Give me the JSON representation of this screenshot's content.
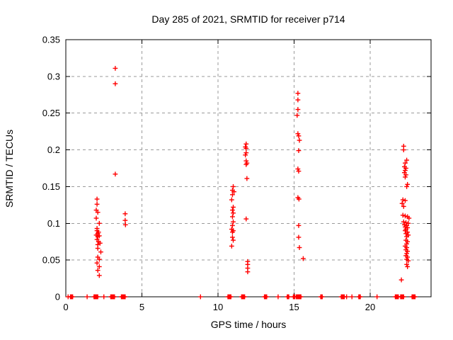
{
  "chart_data": {
    "type": "scatter",
    "title": "Day 285 of 2021, SRMTID for receiver p714",
    "xlabel": "GPS time / hours",
    "ylabel": "SRMTID / TECUs",
    "xlim": [
      0,
      24
    ],
    "ylim": [
      0,
      0.35
    ],
    "xticks": [
      0,
      5,
      10,
      15,
      20
    ],
    "xtick_labels": [
      "0",
      "5",
      "10",
      "15",
      "20"
    ],
    "yticks": [
      0,
      0.05,
      0.1,
      0.15,
      0.2,
      0.25,
      0.3,
      0.35
    ],
    "ytick_labels": [
      "0",
      "0.05",
      "0.1",
      "0.15",
      "0.2",
      "0.25",
      "0.3",
      "0.35"
    ],
    "grid": true,
    "grid_color": "#9a9a9a",
    "axis_color": "#000000",
    "marker": "plus",
    "marker_color": "#ff0000",
    "legend": "none",
    "points": [
      [
        2.05,
        0.133
      ],
      [
        2.05,
        0.126
      ],
      [
        2.0,
        0.118
      ],
      [
        2.1,
        0.115
      ],
      [
        2.0,
        0.107
      ],
      [
        2.2,
        0.1
      ],
      [
        2.05,
        0.093
      ],
      [
        2.05,
        0.09
      ],
      [
        2.15,
        0.088
      ],
      [
        2.1,
        0.086
      ],
      [
        2.0,
        0.084
      ],
      [
        2.2,
        0.083
      ],
      [
        2.1,
        0.082
      ],
      [
        2.05,
        0.078
      ],
      [
        2.15,
        0.075
      ],
      [
        2.25,
        0.073
      ],
      [
        2.1,
        0.071
      ],
      [
        2.1,
        0.066
      ],
      [
        2.3,
        0.061
      ],
      [
        2.1,
        0.054
      ],
      [
        2.2,
        0.051
      ],
      [
        2.05,
        0.046
      ],
      [
        2.2,
        0.041
      ],
      [
        2.1,
        0.036
      ],
      [
        2.2,
        0.029
      ],
      [
        3.25,
        0.311
      ],
      [
        3.25,
        0.29
      ],
      [
        3.25,
        0.167
      ],
      [
        3.9,
        0.113
      ],
      [
        3.9,
        0.104
      ],
      [
        3.92,
        0.098
      ],
      [
        11.0,
        0.15
      ],
      [
        10.95,
        0.145
      ],
      [
        11.05,
        0.143
      ],
      [
        10.95,
        0.139
      ],
      [
        10.9,
        0.132
      ],
      [
        11.0,
        0.122
      ],
      [
        10.95,
        0.118
      ],
      [
        11.0,
        0.114
      ],
      [
        10.95,
        0.109
      ],
      [
        11.0,
        0.102
      ],
      [
        10.95,
        0.097
      ],
      [
        10.9,
        0.092
      ],
      [
        11.0,
        0.09
      ],
      [
        10.95,
        0.088
      ],
      [
        10.95,
        0.081
      ],
      [
        11.0,
        0.077
      ],
      [
        10.9,
        0.069
      ],
      [
        11.85,
        0.208
      ],
      [
        11.8,
        0.204
      ],
      [
        11.85,
        0.202
      ],
      [
        11.85,
        0.196
      ],
      [
        11.8,
        0.193
      ],
      [
        11.85,
        0.185
      ],
      [
        11.9,
        0.182
      ],
      [
        11.85,
        0.18
      ],
      [
        11.9,
        0.161
      ],
      [
        11.85,
        0.106
      ],
      [
        11.95,
        0.048
      ],
      [
        11.95,
        0.044
      ],
      [
        11.95,
        0.039
      ],
      [
        11.95,
        0.034
      ],
      [
        15.25,
        0.277
      ],
      [
        15.25,
        0.268
      ],
      [
        15.25,
        0.255
      ],
      [
        15.2,
        0.247
      ],
      [
        15.25,
        0.222
      ],
      [
        15.3,
        0.219
      ],
      [
        15.35,
        0.213
      ],
      [
        15.3,
        0.199
      ],
      [
        15.25,
        0.174
      ],
      [
        15.3,
        0.171
      ],
      [
        15.25,
        0.135
      ],
      [
        15.32,
        0.133
      ],
      [
        15.3,
        0.097
      ],
      [
        15.3,
        0.081
      ],
      [
        15.35,
        0.067
      ],
      [
        15.6,
        0.052
      ],
      [
        22.2,
        0.205
      ],
      [
        22.2,
        0.2
      ],
      [
        22.4,
        0.186
      ],
      [
        22.3,
        0.182
      ],
      [
        22.25,
        0.177
      ],
      [
        22.35,
        0.175
      ],
      [
        22.3,
        0.172
      ],
      [
        22.25,
        0.169
      ],
      [
        22.35,
        0.166
      ],
      [
        22.3,
        0.163
      ],
      [
        22.45,
        0.153
      ],
      [
        22.4,
        0.15
      ],
      [
        22.15,
        0.132
      ],
      [
        22.3,
        0.131
      ],
      [
        22.1,
        0.127
      ],
      [
        22.2,
        0.123
      ],
      [
        22.15,
        0.111
      ],
      [
        22.3,
        0.11
      ],
      [
        22.45,
        0.109
      ],
      [
        22.55,
        0.107
      ],
      [
        22.2,
        0.102
      ],
      [
        22.35,
        0.101
      ],
      [
        22.5,
        0.1
      ],
      [
        22.25,
        0.098
      ],
      [
        22.4,
        0.097
      ],
      [
        22.3,
        0.095
      ],
      [
        22.45,
        0.094
      ],
      [
        22.35,
        0.092
      ],
      [
        22.3,
        0.09
      ],
      [
        22.45,
        0.088
      ],
      [
        22.35,
        0.086
      ],
      [
        22.5,
        0.084
      ],
      [
        22.4,
        0.082
      ],
      [
        22.35,
        0.077
      ],
      [
        22.45,
        0.075
      ],
      [
        22.4,
        0.072
      ],
      [
        22.3,
        0.069
      ],
      [
        22.4,
        0.067
      ],
      [
        22.35,
        0.064
      ],
      [
        22.45,
        0.062
      ],
      [
        22.4,
        0.059
      ],
      [
        22.35,
        0.056
      ],
      [
        22.45,
        0.054
      ],
      [
        22.4,
        0.051
      ],
      [
        22.5,
        0.049
      ],
      [
        22.4,
        0.044
      ],
      [
        22.45,
        0.041
      ],
      [
        22.05,
        0.023
      ],
      [
        0.15,
        0
      ],
      [
        0.3,
        0
      ],
      [
        0.35,
        0
      ],
      [
        0.4,
        0
      ],
      [
        0.45,
        0
      ],
      [
        1.4,
        0
      ],
      [
        1.85,
        0
      ],
      [
        1.9,
        0
      ],
      [
        1.95,
        0
      ],
      [
        2.0,
        0
      ],
      [
        2.05,
        0
      ],
      [
        2.1,
        0
      ],
      [
        2.5,
        0
      ],
      [
        2.95,
        0
      ],
      [
        3.0,
        0
      ],
      [
        3.05,
        0
      ],
      [
        3.1,
        0
      ],
      [
        3.15,
        0
      ],
      [
        3.2,
        0
      ],
      [
        3.65,
        0
      ],
      [
        3.7,
        0
      ],
      [
        3.75,
        0
      ],
      [
        3.8,
        0
      ],
      [
        3.85,
        0
      ],
      [
        3.9,
        0
      ],
      [
        8.85,
        0
      ],
      [
        10.65,
        0
      ],
      [
        10.7,
        0
      ],
      [
        10.75,
        0
      ],
      [
        10.8,
        0
      ],
      [
        10.85,
        0
      ],
      [
        11.55,
        0
      ],
      [
        11.6,
        0
      ],
      [
        11.65,
        0
      ],
      [
        11.7,
        0
      ],
      [
        11.75,
        0
      ],
      [
        13.05,
        0
      ],
      [
        13.1,
        0
      ],
      [
        13.15,
        0
      ],
      [
        13.2,
        0
      ],
      [
        13.95,
        0
      ],
      [
        14.55,
        0
      ],
      [
        14.6,
        0
      ],
      [
        14.65,
        0
      ],
      [
        14.95,
        0
      ],
      [
        15.0,
        0
      ],
      [
        15.05,
        0
      ],
      [
        15.15,
        0
      ],
      [
        15.2,
        0
      ],
      [
        15.25,
        0
      ],
      [
        15.3,
        0
      ],
      [
        15.35,
        0
      ],
      [
        15.4,
        0
      ],
      [
        15.45,
        0
      ],
      [
        16.75,
        0
      ],
      [
        16.8,
        0
      ],
      [
        16.85,
        0
      ],
      [
        18.1,
        0
      ],
      [
        18.15,
        0
      ],
      [
        18.2,
        0
      ],
      [
        18.25,
        0
      ],
      [
        18.3,
        0
      ],
      [
        18.45,
        0
      ],
      [
        18.8,
        0
      ],
      [
        19.25,
        0
      ],
      [
        19.3,
        0
      ],
      [
        19.35,
        0
      ],
      [
        20.45,
        0
      ],
      [
        21.65,
        0
      ],
      [
        21.7,
        0
      ],
      [
        21.75,
        0
      ],
      [
        21.8,
        0
      ],
      [
        21.85,
        0
      ],
      [
        22.0,
        0
      ],
      [
        22.05,
        0
      ],
      [
        22.1,
        0
      ],
      [
        22.15,
        0
      ],
      [
        22.2,
        0
      ],
      [
        22.75,
        0
      ],
      [
        22.8,
        0
      ],
      [
        22.85,
        0
      ],
      [
        22.9,
        0
      ],
      [
        22.95,
        0
      ]
    ]
  }
}
